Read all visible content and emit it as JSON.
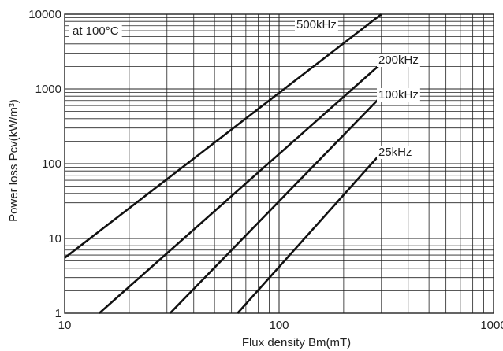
{
  "chart_data": {
    "type": "line",
    "annotation": "at 100°C",
    "xlabel": "Flux density Bm(mT)",
    "ylabel": "Power loss Pcv(kW/m³)",
    "x_scale": "log",
    "y_scale": "log",
    "xlim": [
      10,
      1000
    ],
    "ylim": [
      1,
      10000
    ],
    "x_ticks": [
      "10",
      "100",
      "1000"
    ],
    "y_ticks": [
      "1",
      "10",
      "100",
      "1000",
      "10000"
    ],
    "grid": true,
    "series": [
      {
        "name": "500kHz",
        "x": [
          10,
          300
        ],
        "y": [
          5.5,
          10000
        ]
      },
      {
        "name": "200kHz",
        "x": [
          14.5,
          300
        ],
        "y": [
          1,
          2200
        ]
      },
      {
        "name": "100kHz",
        "x": [
          31,
          300
        ],
        "y": [
          1,
          800
        ]
      },
      {
        "name": "25kHz",
        "x": [
          64,
          300
        ],
        "y": [
          1,
          140
        ]
      }
    ]
  }
}
